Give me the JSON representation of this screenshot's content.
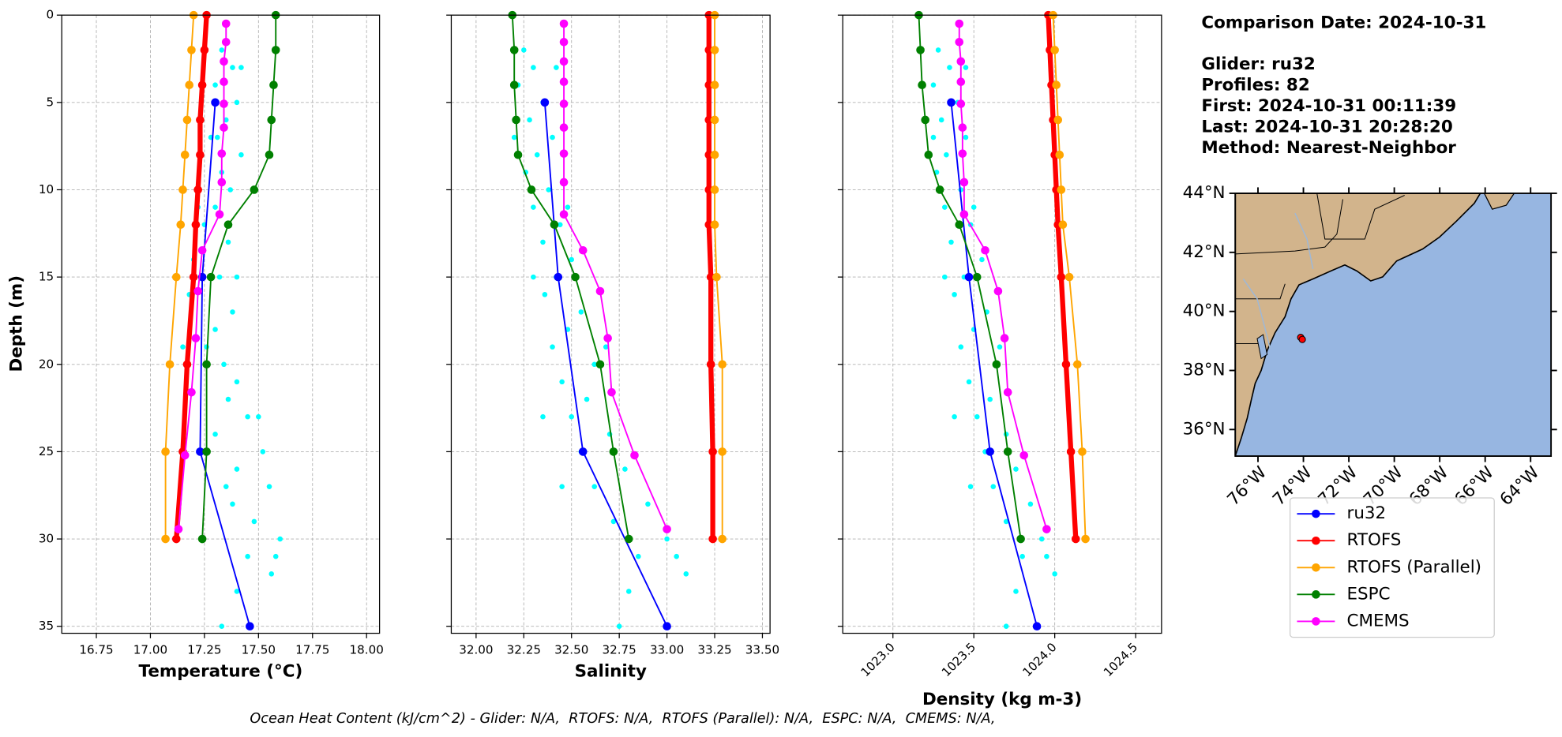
{
  "comparison_date": "Comparison Date: 2024-10-31",
  "details": [
    "Glider: ru32",
    "Profiles: 82",
    "First: 2024-10-31 00:11:39",
    "Last: 2024-10-31 20:28:20",
    "Method: Nearest-Neighbor"
  ],
  "footer": "Ocean Heat Content (kJ/cm^2) - Glider: N/A,  RTOFS: N/A,  RTOFS (Parallel): N/A,  ESPC: N/A,  CMEMS: N/A,",
  "chart_data": [
    {
      "type": "profile",
      "xlabel": "Temperature (°C)",
      "ylabel": "Depth (m)",
      "grid": true,
      "xlim": [
        16.59,
        18.06
      ],
      "ylim": [
        35.4,
        0
      ],
      "xticks": [
        16.75,
        {
          "value": 17,
          "label": "17.00"
        },
        17.25,
        {
          "value": 17.5,
          "label": "17.50"
        },
        17.75,
        {
          "value": 18,
          "label": "18.00"
        }
      ],
      "yticks": [
        0,
        5,
        10,
        15,
        20,
        25,
        30,
        35
      ],
      "points": {
        "color": "#00ffff",
        "depth": [
          2,
          3,
          4,
          5,
          6,
          7,
          8,
          9,
          10,
          11,
          12,
          13,
          14,
          15,
          16,
          17,
          18,
          19,
          20,
          21,
          22,
          23,
          24,
          25,
          26,
          27,
          28,
          29,
          30,
          31,
          32,
          33,
          35,
          3,
          7,
          11,
          15,
          19,
          23,
          27,
          31
        ],
        "values": [
          17.33,
          17.38,
          17.3,
          17.4,
          17.35,
          17.28,
          17.42,
          17.33,
          17.37,
          17.3,
          17.25,
          17.36,
          17.2,
          17.32,
          17.18,
          17.38,
          17.3,
          17.26,
          17.34,
          17.4,
          17.36,
          17.45,
          17.3,
          17.52,
          17.4,
          17.55,
          17.38,
          17.48,
          17.6,
          17.45,
          17.56,
          17.4,
          17.33,
          17.42,
          17.31,
          17.22,
          17.4,
          17.15,
          17.5,
          17.35,
          17.58
        ]
      },
      "series": [
        {
          "name": "ru32",
          "color": "#0000ff",
          "depth": [
            5,
            15,
            25,
            35
          ],
          "values": [
            17.3,
            17.24,
            17.23,
            17.46
          ]
        },
        {
          "name": "RTOFS",
          "color": "#ff0000",
          "linewidth": 5,
          "depth": [
            0,
            2,
            4,
            6,
            8,
            10,
            12,
            15,
            20,
            25,
            30
          ],
          "values": [
            17.26,
            17.25,
            17.24,
            17.23,
            17.23,
            17.22,
            17.21,
            17.2,
            17.17,
            17.15,
            17.12
          ]
        },
        {
          "name": "RTOFS (Parallel)",
          "color": "#ffa500",
          "depth": [
            0,
            2,
            4,
            6,
            8,
            10,
            12,
            15,
            20,
            25,
            30
          ],
          "values": [
            17.2,
            17.19,
            17.18,
            17.17,
            17.16,
            17.15,
            17.14,
            17.12,
            17.09,
            17.07,
            17.07
          ]
        },
        {
          "name": "ESPC",
          "color": "#008000",
          "depth": [
            0,
            2,
            4,
            6,
            8,
            10,
            12,
            15,
            20,
            25,
            30
          ],
          "values": [
            17.58,
            17.58,
            17.57,
            17.56,
            17.55,
            17.48,
            17.36,
            17.28,
            17.26,
            17.26,
            17.24
          ]
        },
        {
          "name": "CMEMS",
          "color": "#ff00ff",
          "depth": [
            0.49,
            1.54,
            2.65,
            3.82,
            5.08,
            6.44,
            7.93,
            9.57,
            11.41,
            13.47,
            15.81,
            18.5,
            21.6,
            25.21,
            29.44
          ],
          "values": [
            17.35,
            17.35,
            17.34,
            17.34,
            17.34,
            17.34,
            17.33,
            17.33,
            17.32,
            17.24,
            17.22,
            17.21,
            17.19,
            17.16,
            17.13
          ]
        }
      ]
    },
    {
      "type": "profile",
      "xlabel": "Salinity",
      "grid": true,
      "xlim": [
        31.87,
        33.54
      ],
      "ylim": [
        35.4,
        0
      ],
      "xticks": [
        {
          "value": 32,
          "label": "32.00"
        },
        32.25,
        {
          "value": 32.5,
          "label": "32.50"
        },
        32.75,
        {
          "value": 33,
          "label": "33.00"
        },
        33.25,
        {
          "value": 33.5,
          "label": "33.50"
        }
      ],
      "yticks": [
        0,
        5,
        10,
        15,
        20,
        25,
        30,
        35
      ],
      "points": {
        "color": "#00ffff",
        "depth": [
          2,
          3,
          4,
          5,
          6,
          7,
          8,
          9,
          10,
          11,
          12,
          13,
          14,
          15,
          16,
          17,
          18,
          19,
          20,
          21,
          22,
          23,
          24,
          25,
          26,
          27,
          28,
          29,
          30,
          31,
          32,
          33,
          35,
          3,
          7,
          11,
          15,
          19,
          23,
          27,
          31
        ],
        "values": [
          32.25,
          32.3,
          32.22,
          32.35,
          32.28,
          32.4,
          32.32,
          32.26,
          32.38,
          32.3,
          32.44,
          32.35,
          32.5,
          32.42,
          32.36,
          32.55,
          32.48,
          32.4,
          32.62,
          32.45,
          32.58,
          32.5,
          32.7,
          32.55,
          32.78,
          32.62,
          32.9,
          32.72,
          33.0,
          32.85,
          33.1,
          32.8,
          32.75,
          32.42,
          32.2,
          32.48,
          32.3,
          32.68,
          32.35,
          32.45,
          33.05
        ]
      },
      "series": [
        {
          "name": "ru32",
          "color": "#0000ff",
          "depth": [
            5,
            15,
            25,
            35
          ],
          "values": [
            32.36,
            32.43,
            32.56,
            33.0
          ]
        },
        {
          "name": "RTOFS",
          "color": "#ff0000",
          "linewidth": 5,
          "depth": [
            0,
            2,
            4,
            6,
            8,
            10,
            12,
            15,
            20,
            25,
            30
          ],
          "values": [
            33.22,
            33.22,
            33.22,
            33.22,
            33.22,
            33.22,
            33.22,
            33.23,
            33.23,
            33.24,
            33.24
          ]
        },
        {
          "name": "RTOFS (Parallel)",
          "color": "#ffa500",
          "depth": [
            0,
            2,
            4,
            6,
            8,
            10,
            12,
            15,
            20,
            25,
            30
          ],
          "values": [
            33.25,
            33.25,
            33.25,
            33.25,
            33.25,
            33.25,
            33.25,
            33.26,
            33.29,
            33.29,
            33.29
          ]
        },
        {
          "name": "ESPC",
          "color": "#008000",
          "depth": [
            0,
            2,
            4,
            6,
            8,
            10,
            12,
            15,
            20,
            25,
            30
          ],
          "values": [
            32.19,
            32.2,
            32.2,
            32.21,
            32.22,
            32.29,
            32.41,
            32.52,
            32.65,
            32.72,
            32.8
          ]
        },
        {
          "name": "CMEMS",
          "color": "#ff00ff",
          "depth": [
            0.49,
            1.54,
            2.65,
            3.82,
            5.08,
            6.44,
            7.93,
            9.57,
            11.41,
            13.47,
            15.81,
            18.5,
            21.6,
            25.21,
            29.44
          ],
          "values": [
            32.46,
            32.46,
            32.46,
            32.46,
            32.46,
            32.46,
            32.46,
            32.46,
            32.46,
            32.56,
            32.65,
            32.69,
            32.71,
            32.83,
            33.0
          ]
        }
      ]
    },
    {
      "type": "profile",
      "xlabel": "Density (kg m-3)",
      "grid": true,
      "rotate_xticks": true,
      "xlim": [
        1022.69,
        1024.66
      ],
      "ylim": [
        35.4,
        0
      ],
      "xticks": [
        {
          "value": 1023,
          "label": "1023.0"
        },
        1023.5,
        {
          "value": 1024,
          "label": "1024.0"
        },
        1024.5
      ],
      "yticks": [
        0,
        5,
        10,
        15,
        20,
        25,
        30,
        35
      ],
      "points": {
        "color": "#00ffff",
        "depth": [
          2,
          3,
          4,
          5,
          6,
          7,
          8,
          9,
          10,
          11,
          12,
          13,
          14,
          15,
          16,
          17,
          18,
          19,
          20,
          21,
          22,
          23,
          24,
          25,
          26,
          27,
          28,
          29,
          30,
          31,
          32,
          33,
          35,
          3,
          7,
          11,
          15,
          19,
          23,
          27,
          31
        ],
        "values": [
          1023.28,
          1023.35,
          1023.25,
          1023.4,
          1023.3,
          1023.45,
          1023.33,
          1023.27,
          1023.42,
          1023.32,
          1023.48,
          1023.36,
          1023.55,
          1023.44,
          1023.38,
          1023.58,
          1023.5,
          1023.42,
          1023.64,
          1023.47,
          1023.6,
          1023.52,
          1023.7,
          1023.57,
          1023.76,
          1023.62,
          1023.85,
          1023.7,
          1023.92,
          1023.8,
          1024.0,
          1023.76,
          1023.7,
          1023.45,
          1023.25,
          1023.5,
          1023.32,
          1023.66,
          1023.38,
          1023.48,
          1023.95
        ]
      },
      "series": [
        {
          "name": "ru32",
          "color": "#0000ff",
          "depth": [
            5,
            15,
            25,
            35
          ],
          "values": [
            1023.36,
            1023.47,
            1023.6,
            1023.89
          ]
        },
        {
          "name": "RTOFS",
          "color": "#ff0000",
          "linewidth": 5,
          "depth": [
            0,
            2,
            4,
            6,
            8,
            10,
            12,
            15,
            20,
            25,
            30
          ],
          "values": [
            1023.96,
            1023.97,
            1023.98,
            1023.99,
            1024.0,
            1024.01,
            1024.02,
            1024.04,
            1024.07,
            1024.1,
            1024.13
          ]
        },
        {
          "name": "RTOFS (Parallel)",
          "color": "#ffa500",
          "depth": [
            0,
            2,
            4,
            6,
            8,
            10,
            12,
            15,
            20,
            25,
            30
          ],
          "values": [
            1023.99,
            1024.0,
            1024.01,
            1024.02,
            1024.03,
            1024.04,
            1024.05,
            1024.09,
            1024.14,
            1024.17,
            1024.19
          ]
        },
        {
          "name": "ESPC",
          "color": "#008000",
          "depth": [
            0,
            2,
            4,
            6,
            8,
            10,
            12,
            15,
            20,
            25,
            30
          ],
          "values": [
            1023.16,
            1023.17,
            1023.18,
            1023.2,
            1023.22,
            1023.29,
            1023.41,
            1023.52,
            1023.64,
            1023.71,
            1023.79
          ]
        },
        {
          "name": "CMEMS",
          "color": "#ff00ff",
          "depth": [
            0.49,
            1.54,
            2.65,
            3.82,
            5.08,
            6.44,
            7.93,
            9.57,
            11.41,
            13.47,
            15.81,
            18.5,
            21.6,
            25.21,
            29.44
          ],
          "values": [
            1023.41,
            1023.41,
            1023.42,
            1023.42,
            1023.42,
            1023.43,
            1023.43,
            1023.44,
            1023.44,
            1023.57,
            1023.65,
            1023.69,
            1023.71,
            1023.81,
            1023.95
          ]
        }
      ]
    },
    {
      "type": "map",
      "xlim": [
        -77,
        -63.1
      ],
      "ylim": [
        35.1,
        44
      ],
      "xticks": [
        {
          "value": -76,
          "label": "76°W"
        },
        {
          "value": -74,
          "label": "74°W"
        },
        {
          "value": -72,
          "label": "72°W"
        },
        {
          "value": -70,
          "label": "70°W"
        },
        {
          "value": -68,
          "label": "68°W"
        },
        {
          "value": -66,
          "label": "66°W"
        },
        {
          "value": -64,
          "label": "64°W"
        }
      ],
      "yticks": [
        {
          "value": 36,
          "label": "36°N"
        },
        {
          "value": 38,
          "label": "38°N"
        },
        {
          "value": 40,
          "label": "40°N"
        },
        {
          "value": 42,
          "label": "42°N"
        },
        {
          "value": 44,
          "label": "44°N"
        }
      ],
      "track": {
        "color": "#ff0000",
        "lon": [
          -74.12,
          -74.05
        ],
        "lat": [
          39.12,
          39.05
        ]
      }
    }
  ]
}
